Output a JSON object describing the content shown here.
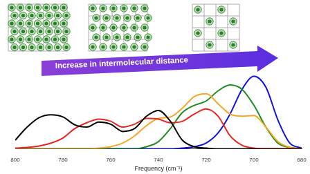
{
  "chart_data": {
    "type": "line",
    "annotation": "Increase in intermolecular distance",
    "x_label": "Frequency (cm⁻¹)",
    "x": [
      800,
      795,
      790,
      785,
      780,
      775,
      770,
      765,
      760,
      755,
      750,
      745,
      740,
      735,
      730,
      725,
      720,
      715,
      710,
      705,
      700,
      695,
      690,
      685,
      680
    ],
    "series": [
      {
        "color": "#000000",
        "values": [
          0.12,
          0.3,
          0.43,
          0.47,
          0.44,
          0.33,
          0.3,
          0.37,
          0.34,
          0.24,
          0.28,
          0.45,
          0.53,
          0.38,
          0.12,
          0.03,
          0.01,
          0,
          0,
          0,
          0,
          0,
          0,
          0,
          0
        ]
      },
      {
        "color": "#e8251e",
        "values": [
          0.01,
          0.02,
          0.04,
          0.08,
          0.15,
          0.28,
          0.36,
          0.41,
          0.38,
          0.3,
          0.34,
          0.42,
          0.41,
          0.36,
          0.38,
          0.48,
          0.55,
          0.45,
          0.18,
          0.05,
          0.01,
          0,
          0,
          0,
          0
        ]
      },
      {
        "color": "#f5a623",
        "values": [
          0,
          0,
          0,
          0,
          0,
          0,
          0,
          0.01,
          0.03,
          0.08,
          0.18,
          0.32,
          0.42,
          0.44,
          0.56,
          0.72,
          0.76,
          0.62,
          0.48,
          0.45,
          0.46,
          0.3,
          0.1,
          0.02,
          0
        ]
      },
      {
        "color": "#1e8c1e",
        "values": [
          0,
          0,
          0,
          0,
          0,
          0,
          0,
          0,
          0,
          0,
          0,
          0.03,
          0.1,
          0.28,
          0.5,
          0.6,
          0.66,
          0.8,
          0.88,
          0.82,
          0.6,
          0.3,
          0.08,
          0.02,
          0
        ]
      },
      {
        "color": "#1010e0",
        "values": [
          0,
          0,
          0,
          0,
          0,
          0,
          0,
          0,
          0,
          0,
          0,
          0,
          0,
          0,
          0.01,
          0.03,
          0.08,
          0.22,
          0.48,
          0.82,
          1.0,
          0.85,
          0.4,
          0.08,
          0.01
        ]
      }
    ],
    "xlim": [
      800,
      680
    ],
    "xticks": [
      800,
      780,
      760,
      740,
      720,
      700,
      680
    ],
    "ylim": [
      0,
      1.1
    ],
    "grid": false,
    "tick_labels": "x"
  }
}
